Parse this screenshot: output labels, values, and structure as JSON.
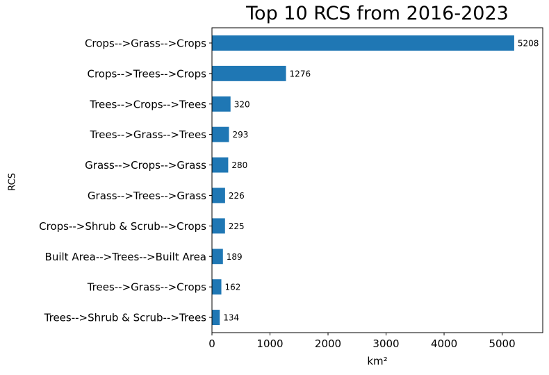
{
  "chart_data": {
    "type": "bar",
    "orientation": "horizontal",
    "title": "Top 10 RCS from 2016-2023",
    "xlabel": "km²",
    "ylabel": "RCS",
    "categories": [
      "Crops-->Grass-->Crops",
      "Crops-->Trees-->Crops",
      "Trees-->Crops-->Trees",
      "Trees-->Grass-->Trees",
      "Grass-->Crops-->Grass",
      "Grass-->Trees-->Grass",
      "Crops-->Shrub & Scrub-->Crops",
      "Built Area-->Trees-->Built Area",
      "Trees-->Grass-->Crops",
      "Trees-->Shrub & Scrub-->Trees"
    ],
    "values": [
      5208,
      1276,
      320,
      293,
      280,
      226,
      225,
      189,
      162,
      134
    ],
    "data_labels": [
      "5208",
      "1276",
      "320",
      "293",
      "280",
      "226",
      "225",
      "189",
      "162",
      "134"
    ],
    "xlim": [
      0,
      5700
    ],
    "xticks": [
      0,
      1000,
      2000,
      3000,
      4000,
      5000
    ],
    "xtick_labels": [
      "0",
      "1000",
      "2000",
      "3000",
      "4000",
      "5000"
    ],
    "grid": false,
    "color": "#1f77b4"
  }
}
